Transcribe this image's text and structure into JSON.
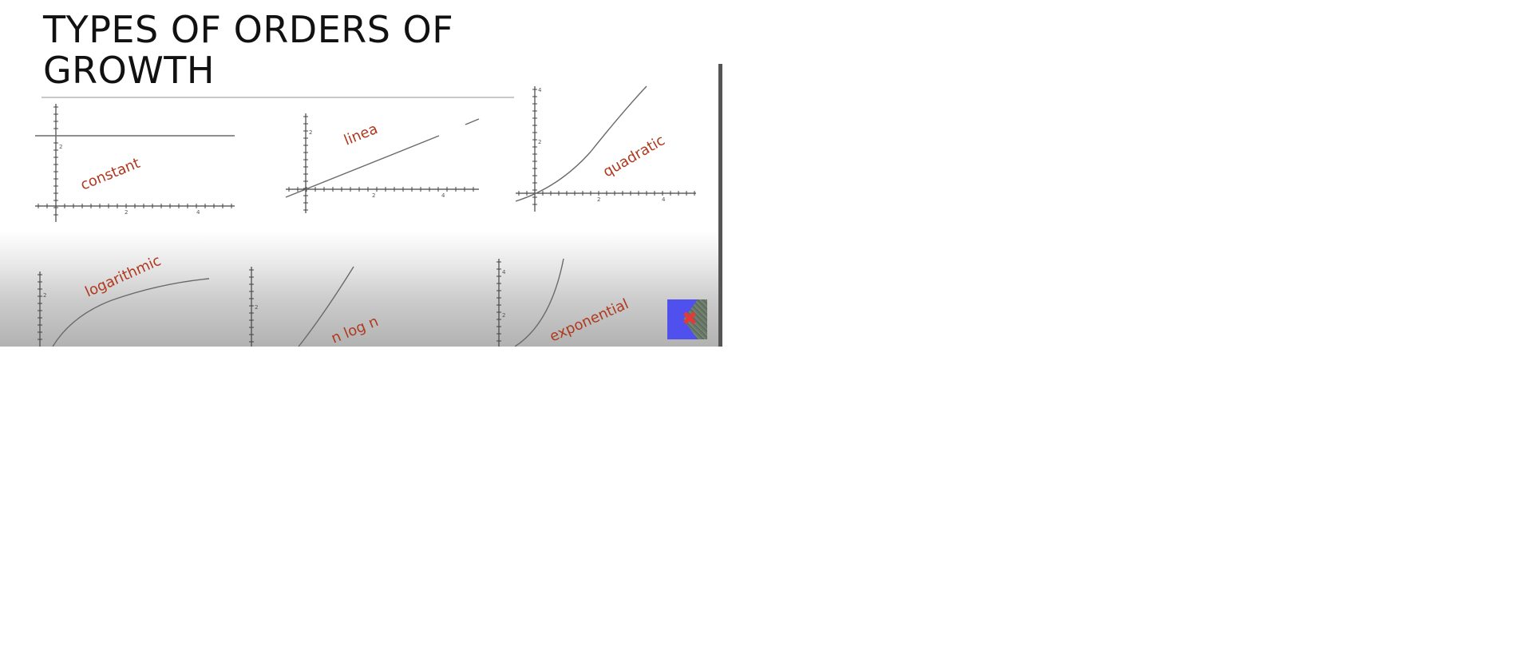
{
  "slide": {
    "title": "TYPES OF ORDERS OF GROWTH"
  },
  "graphs": {
    "constant": {
      "label": "constant",
      "ytick": "2",
      "xticks": [
        "2",
        "4"
      ]
    },
    "linear": {
      "label": "linea",
      "ytick": "2",
      "xticks": [
        "2",
        "4"
      ]
    },
    "quadratic": {
      "label": "quadratic",
      "yticks": [
        "2",
        "4"
      ],
      "xticks": [
        "2",
        "4"
      ]
    },
    "logarithmic": {
      "label": "logarithmic",
      "ytick": "2"
    },
    "nlogn": {
      "label": "n log n",
      "ytick": "2"
    },
    "exponential": {
      "label": "exponential",
      "ytick": "2",
      "ytick_top": "4"
    }
  },
  "overlay": {
    "icon": "video-thumbnail-icon",
    "glyph": "✖"
  },
  "colors": {
    "label": "#b0391f",
    "curve": "#6a6a6a",
    "title": "#111111"
  }
}
